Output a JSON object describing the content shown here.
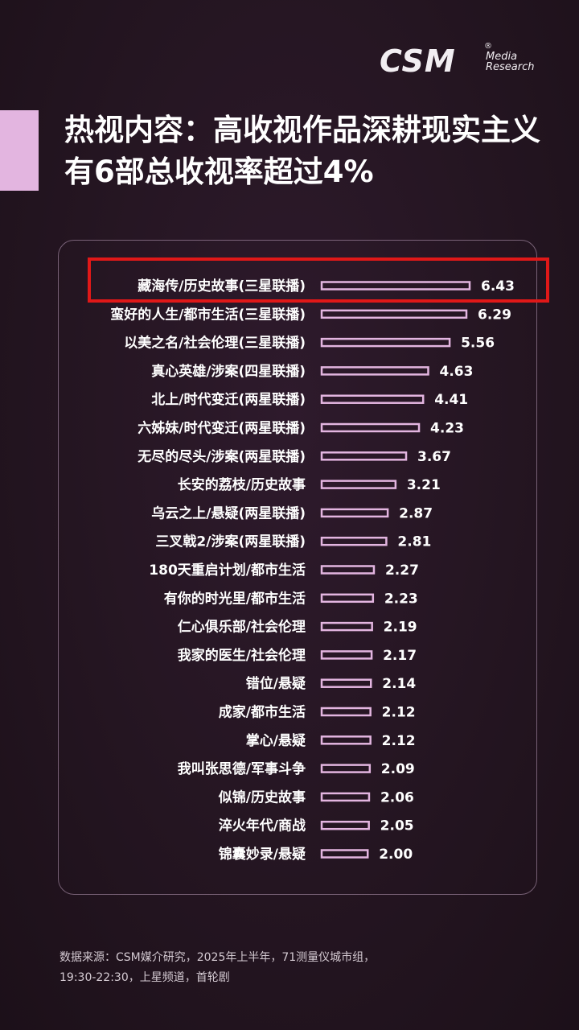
{
  "logo": {
    "main": "CSM",
    "registered": "®",
    "line1": "Media",
    "line2": "Research"
  },
  "title": {
    "line1": "热视内容：高收视作品深耕现实主义",
    "line2": "有6部总收视率超过4%"
  },
  "chart_data": {
    "type": "bar",
    "orientation": "horizontal",
    "categories": [
      "藏海传/历史故事(三星联播)",
      "蛮好的人生/都市生活(三星联播)",
      "以美之名/社会伦理(三星联播)",
      "真心英雄/涉案(四星联播)",
      "北上/时代变迁(两星联播)",
      "六姊妹/时代变迁(两星联播)",
      "无尽的尽头/涉案(两星联播)",
      "长安的荔枝/历史故事",
      "乌云之上/悬疑(两星联播)",
      "三叉戟2/涉案(两星联播)",
      "180天重启计划/都市生活",
      "有你的时光里/都市生活",
      "仁心俱乐部/社会伦理",
      "我家的医生/社会伦理",
      "错位/悬疑",
      "成家/都市生活",
      "掌心/悬疑",
      "我叫张思德/军事斗争",
      "似锦/历史故事",
      "淬火年代/商战",
      "锦囊妙录/悬疑"
    ],
    "values": [
      6.43,
      6.29,
      5.56,
      4.63,
      4.41,
      4.23,
      3.67,
      3.21,
      2.87,
      2.81,
      2.27,
      2.23,
      2.19,
      2.17,
      2.14,
      2.12,
      2.12,
      2.09,
      2.06,
      2.05,
      2.0
    ],
    "value_labels": [
      "6.43",
      "6.29",
      "5.56",
      "4.63",
      "4.41",
      "4.23",
      "3.67",
      "3.21",
      "2.87",
      "2.81",
      "2.27",
      "2.23",
      "2.19",
      "2.17",
      "2.14",
      "2.12",
      "2.12",
      "2.09",
      "2.06",
      "2.05",
      "2.00"
    ],
    "highlighted_index": 0,
    "grid": false,
    "legend": "none"
  },
  "footnote": {
    "line1": "数据来源：CSM媒介研究，2025年上半年，71测量仪城市组，",
    "line2": "19:30-22:30，上星频道，首轮剧"
  },
  "colors": {
    "background": "#241521",
    "accent": "#e3b5e0",
    "bar_outline": "#e3b5e0",
    "highlight_box": "#e01818",
    "text": "#ffffff"
  }
}
